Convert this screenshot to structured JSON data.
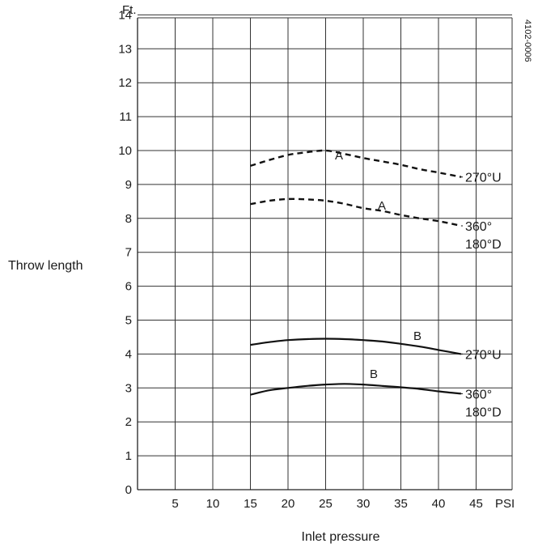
{
  "chart_data": {
    "type": "line",
    "xlabel": "Inlet  pressure",
    "x_unit": "PSI",
    "ylabel": "Throw length",
    "y_unit": "Ft.",
    "code": "4102-0006",
    "x_ticks": [
      "5",
      "10",
      "15",
      "20",
      "25",
      "30",
      "35",
      "40",
      "45"
    ],
    "y_ticks": [
      "0",
      "1",
      "2",
      "3",
      "4",
      "5",
      "6",
      "7",
      "8",
      "9",
      "10",
      "11",
      "12",
      "13",
      "14"
    ],
    "xlim": [
      0,
      50
    ],
    "grid": true,
    "series": [
      {
        "name": "A",
        "end_label": [
          "270°U"
        ],
        "style": "dashed",
        "x": [
          15,
          17.5,
          20,
          22.5,
          25,
          27.5,
          30,
          32.5,
          35,
          37.5,
          40,
          43
        ],
        "y": [
          9.55,
          9.72,
          9.87,
          9.95,
          10.0,
          9.9,
          9.78,
          9.68,
          9.58,
          9.45,
          9.35,
          9.22
        ]
      },
      {
        "name": "A",
        "end_label": [
          "360°",
          "180°D"
        ],
        "style": "dashed",
        "x": [
          15,
          17.5,
          20,
          22.5,
          25,
          27.5,
          30,
          32.5,
          35,
          37.5,
          40,
          43
        ],
        "y": [
          8.42,
          8.52,
          8.57,
          8.56,
          8.52,
          8.43,
          8.3,
          8.22,
          8.1,
          8.0,
          7.92,
          7.78
        ]
      },
      {
        "name": "B",
        "end_label": [
          "270°U"
        ],
        "style": "solid",
        "x": [
          15,
          17.5,
          20,
          22.5,
          25,
          27.5,
          30,
          32.5,
          35,
          37.5,
          40,
          43
        ],
        "y": [
          4.27,
          4.35,
          4.41,
          4.44,
          4.45,
          4.44,
          4.41,
          4.37,
          4.3,
          4.22,
          4.12,
          4.0
        ]
      },
      {
        "name": "B",
        "end_label": [
          "360°",
          "180°D"
        ],
        "style": "solid",
        "x": [
          15,
          17.5,
          20,
          22.5,
          25,
          27.5,
          30,
          32.5,
          35,
          37.5,
          40,
          43
        ],
        "y": [
          2.8,
          2.93,
          3.0,
          3.06,
          3.1,
          3.12,
          3.1,
          3.06,
          3.02,
          2.97,
          2.9,
          2.83
        ]
      }
    ]
  }
}
